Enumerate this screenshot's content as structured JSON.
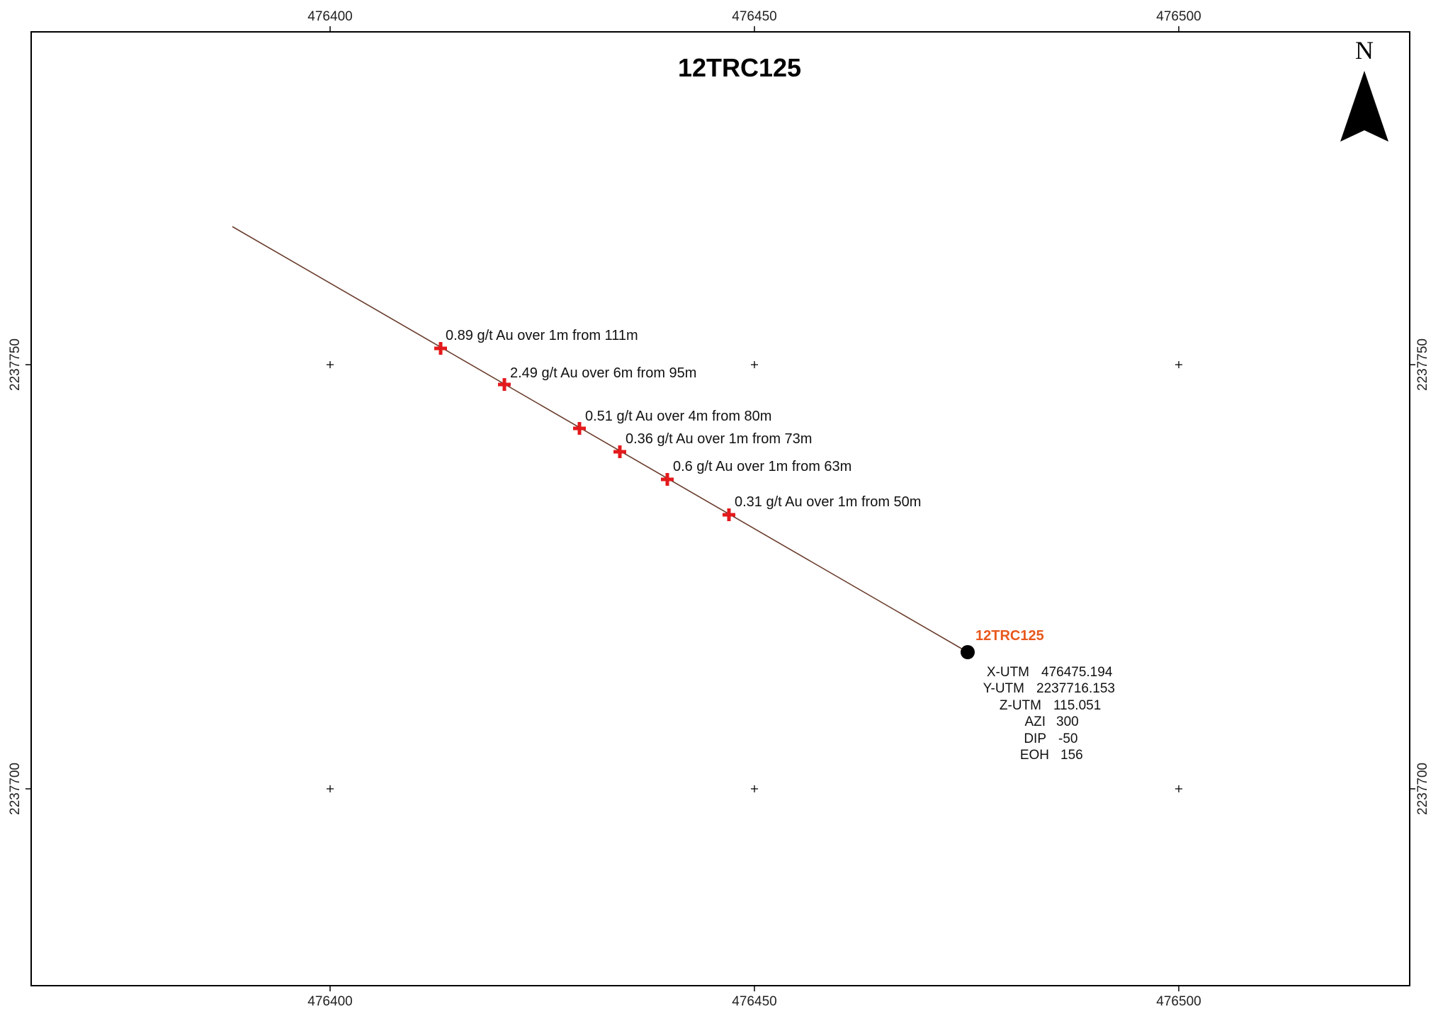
{
  "map": {
    "title": "12TRC125",
    "north_label": "N",
    "x_ticks": [
      "476400",
      "476450",
      "476500"
    ],
    "y_ticks": [
      "2237750",
      "2237700"
    ],
    "colors": {
      "trace": "#6b3e2e",
      "assay_marker": "#e31a1c",
      "collar_label": "#e8581c",
      "collar_marker": "#000000"
    }
  },
  "hole": {
    "name": "12TRC125",
    "info": [
      {
        "label": "X-UTM",
        "value": "476475.194"
      },
      {
        "label": "Y-UTM",
        "value": "2237716.153"
      },
      {
        "label": "Z-UTM",
        "value": "115.051"
      },
      {
        "label": "AZI",
        "value": "300"
      },
      {
        "label": "DIP",
        "value": "-50"
      },
      {
        "label": "EOH",
        "value": "156"
      }
    ]
  },
  "assays": [
    {
      "text": "0.89 g/t Au over 1m from 111m"
    },
    {
      "text": "2.49 g/t Au over 6m from 95m"
    },
    {
      "text": "0.51 g/t Au over 4m from 80m"
    },
    {
      "text": "0.36 g/t Au over 1m from 73m"
    },
    {
      "text": "0.6 g/t Au over 1m from 63m"
    },
    {
      "text": "0.31 g/t Au over 1m from 50m"
    }
  ]
}
